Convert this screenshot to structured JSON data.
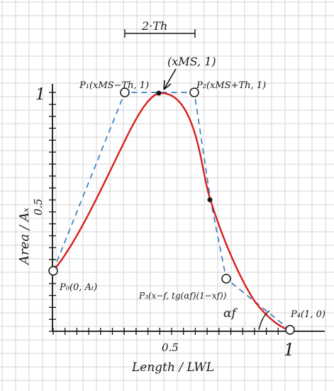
{
  "diagram": {
    "axis_label_y": "Area / Aₓ",
    "axis_label_x": "Length / LWL",
    "tick_y_one": "1",
    "tick_y_half": "0.5",
    "tick_x_half": "0.5",
    "tick_x_one": "1",
    "span_label": "2·Th",
    "peak_label": "(xMS, 1)",
    "points": {
      "p0": "P₀(0, Aₜ)",
      "p1": "P₁(xMS−Th, 1)",
      "p2": "P₂(xMS+Th, 1)",
      "p3": "P₃(x−f, tg(αf)(1−xf))",
      "p4": "P₄(1, 0)"
    },
    "angle_label": "αf"
  },
  "colors": {
    "grid": "#c9c9c9",
    "ink": "#151515",
    "curve": "#d81e1e",
    "polygon": "#3a7fc4",
    "background": "#ffffff"
  }
}
